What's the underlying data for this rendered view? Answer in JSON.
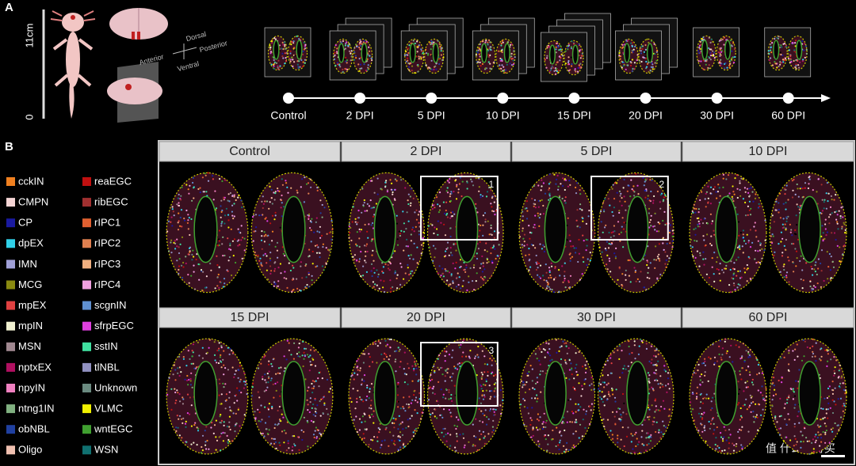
{
  "panel_a": {
    "label": "A",
    "scale_top": "11cm",
    "scale_bottom": "0",
    "axes": {
      "dorsal": "Dorsal",
      "ventral": "Ventral",
      "anterior": "Anterior",
      "posterior": "Posterior"
    },
    "timepoints": [
      "Control",
      "2 DPI",
      "5 DPI",
      "10 DPI",
      "15 DPI",
      "20 DPI",
      "30 DPI",
      "60 DPI"
    ]
  },
  "panel_b": {
    "label": "B",
    "legend": [
      {
        "label": "cckIN",
        "color": "#f08020"
      },
      {
        "label": "CMPN",
        "color": "#f5d5d5"
      },
      {
        "label": "CP",
        "color": "#1a1aa0"
      },
      {
        "label": "dpEX",
        "color": "#30d0e8"
      },
      {
        "label": "IMN",
        "color": "#a0a0d8"
      },
      {
        "label": "MCG",
        "color": "#8a8a10"
      },
      {
        "label": "mpEX",
        "color": "#e04040"
      },
      {
        "label": "mpIN",
        "color": "#f0f0d0"
      },
      {
        "label": "MSN",
        "color": "#a08890"
      },
      {
        "label": "nptxEX",
        "color": "#b01060"
      },
      {
        "label": "npyIN",
        "color": "#f080c0"
      },
      {
        "label": "ntng1IN",
        "color": "#80b080"
      },
      {
        "label": "obNBL",
        "color": "#2040a0"
      },
      {
        "label": "Oligo",
        "color": "#f0c0b0"
      },
      {
        "label": "reaEGC",
        "color": "#c01010"
      },
      {
        "label": "ribEGC",
        "color": "#a03030"
      },
      {
        "label": "rIPC1",
        "color": "#e06030"
      },
      {
        "label": "rIPC2",
        "color": "#e08050"
      },
      {
        "label": "rIPC3",
        "color": "#f0b080"
      },
      {
        "label": "rIPC4",
        "color": "#f0a0e0"
      },
      {
        "label": "scgnIN",
        "color": "#6090d0"
      },
      {
        "label": "sfrpEGC",
        "color": "#e040e0"
      },
      {
        "label": "sstIN",
        "color": "#40e0a0"
      },
      {
        "label": "tlNBL",
        "color": "#9090c0"
      },
      {
        "label": "Unknown",
        "color": "#6a8a80"
      },
      {
        "label": "VLMC",
        "color": "#f0f000"
      },
      {
        "label": "wntEGC",
        "color": "#40a030"
      },
      {
        "label": "WSN",
        "color": "#107070"
      }
    ],
    "panels": [
      {
        "title": "Control"
      },
      {
        "title": "2 DPI",
        "box": "1"
      },
      {
        "title": "5 DPI",
        "box": "2"
      },
      {
        "title": "10 DPI"
      },
      {
        "title": "15 DPI"
      },
      {
        "title": "20 DPI",
        "box": "3"
      },
      {
        "title": "30 DPI"
      },
      {
        "title": "60 DPI"
      }
    ]
  },
  "watermark": "值 什么值得买"
}
